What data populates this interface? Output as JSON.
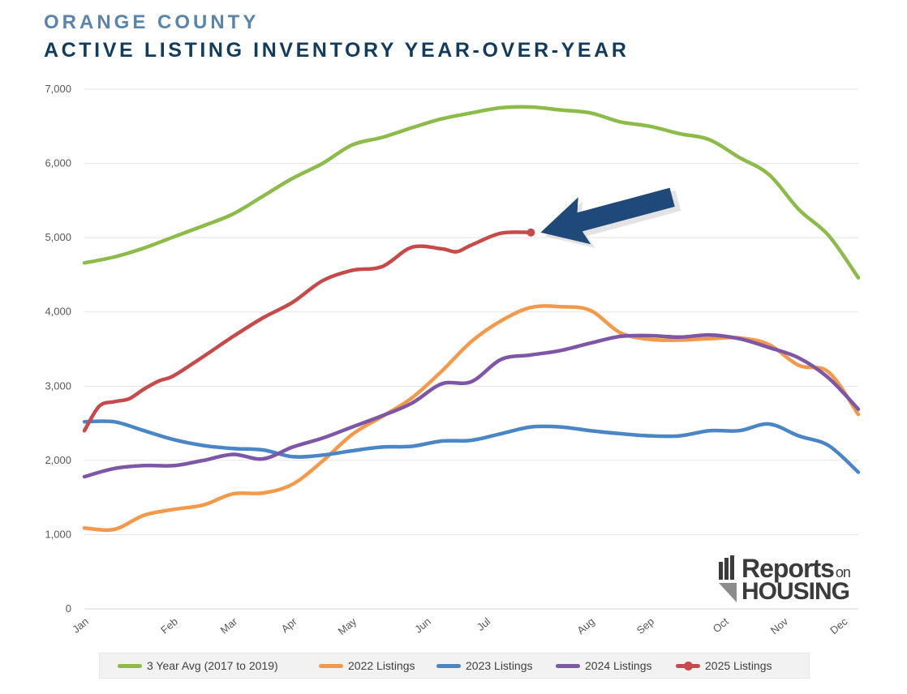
{
  "header": {
    "region": "ORANGE COUNTY",
    "title": "ACTIVE LISTING INVENTORY YEAR-OVER-YEAR"
  },
  "logo": {
    "reports": "Reports",
    "on": "on",
    "housing": "HOUSING",
    "color": "#3b3b3b"
  },
  "chart_data": {
    "type": "line",
    "title": "ACTIVE LISTING INVENTORY YEAR-OVER-YEAR",
    "xlabel": "",
    "ylabel": "",
    "ylim": [
      0,
      7000
    ],
    "xlim": [
      0,
      52
    ],
    "y_ticks": [
      0,
      1000,
      2000,
      3000,
      4000,
      5000,
      6000,
      7000
    ],
    "y_tick_labels": [
      "0",
      "1,000",
      "2,000",
      "3,000",
      "4,000",
      "5,000",
      "6,000",
      "7,000"
    ],
    "x_ticks": [
      0,
      6,
      10,
      14,
      18,
      23,
      27,
      34,
      38,
      43,
      47,
      51
    ],
    "x_tick_labels": [
      "Jan",
      "Feb",
      "Mar",
      "Apr",
      "May",
      "Jun",
      "Jul",
      "Aug",
      "Sep",
      "Oct",
      "Nov",
      "Dec"
    ],
    "grid": true,
    "legend_position": "bottom",
    "annotation": "arrow pointing to latest 2025 data point",
    "series": [
      {
        "name": "3 Year Avg (2017 to 2019)",
        "color": "#8dbb4a",
        "x": [
          0,
          2,
          4,
          6,
          8,
          10,
          12,
          14,
          16,
          18,
          20,
          22,
          24,
          26,
          28,
          30,
          32,
          34,
          36,
          38,
          40,
          42,
          44,
          46,
          48,
          50,
          52
        ],
        "values": [
          4660,
          4740,
          4860,
          5010,
          5160,
          5320,
          5560,
          5800,
          6000,
          6250,
          6350,
          6480,
          6600,
          6680,
          6750,
          6760,
          6720,
          6680,
          6560,
          6500,
          6400,
          6320,
          6080,
          5850,
          5380,
          5030,
          4460
        ]
      },
      {
        "name": "2022 Listings",
        "color": "#f39a4a",
        "x": [
          0,
          2,
          4,
          6,
          8,
          10,
          12,
          14,
          16,
          18,
          20,
          22,
          24,
          26,
          28,
          30,
          32,
          34,
          36,
          38,
          40,
          42,
          44,
          46,
          48,
          50,
          52
        ],
        "values": [
          1090,
          1070,
          1260,
          1340,
          1400,
          1550,
          1560,
          1680,
          1990,
          2350,
          2590,
          2840,
          3200,
          3600,
          3880,
          4060,
          4070,
          4020,
          3720,
          3630,
          3620,
          3640,
          3650,
          3560,
          3280,
          3190,
          2620
        ]
      },
      {
        "name": "2023 Listings",
        "color": "#4a86c6",
        "x": [
          0,
          2,
          4,
          6,
          8,
          10,
          12,
          14,
          16,
          18,
          20,
          22,
          24,
          26,
          28,
          30,
          32,
          34,
          36,
          38,
          40,
          42,
          44,
          46,
          48,
          50,
          52
        ],
        "values": [
          2520,
          2520,
          2400,
          2280,
          2200,
          2160,
          2140,
          2050,
          2070,
          2130,
          2180,
          2190,
          2260,
          2270,
          2360,
          2450,
          2450,
          2400,
          2360,
          2330,
          2330,
          2400,
          2400,
          2490,
          2330,
          2200,
          1840
        ]
      },
      {
        "name": "2024 Listings",
        "color": "#7e56a6",
        "x": [
          0,
          2,
          4,
          6,
          8,
          10,
          12,
          14,
          16,
          18,
          20,
          22,
          24,
          26,
          28,
          30,
          32,
          34,
          36,
          38,
          40,
          42,
          44,
          46,
          48,
          50,
          52
        ],
        "values": [
          1780,
          1890,
          1930,
          1930,
          2000,
          2080,
          2020,
          2180,
          2300,
          2450,
          2600,
          2770,
          3030,
          3060,
          3360,
          3420,
          3480,
          3580,
          3670,
          3680,
          3660,
          3690,
          3640,
          3520,
          3380,
          3110,
          2690
        ]
      },
      {
        "name": "2025 Listings",
        "color": "#c64a4a",
        "x": [
          0,
          1,
          2,
          3,
          4,
          5,
          6,
          8,
          10,
          12,
          14,
          16,
          18,
          20,
          22,
          24,
          25,
          26,
          28,
          30
        ],
        "values": [
          2400,
          2730,
          2790,
          2830,
          2960,
          3070,
          3140,
          3400,
          3670,
          3920,
          4130,
          4420,
          4560,
          4610,
          4870,
          4850,
          4810,
          4900,
          5060,
          5070
        ]
      }
    ]
  }
}
